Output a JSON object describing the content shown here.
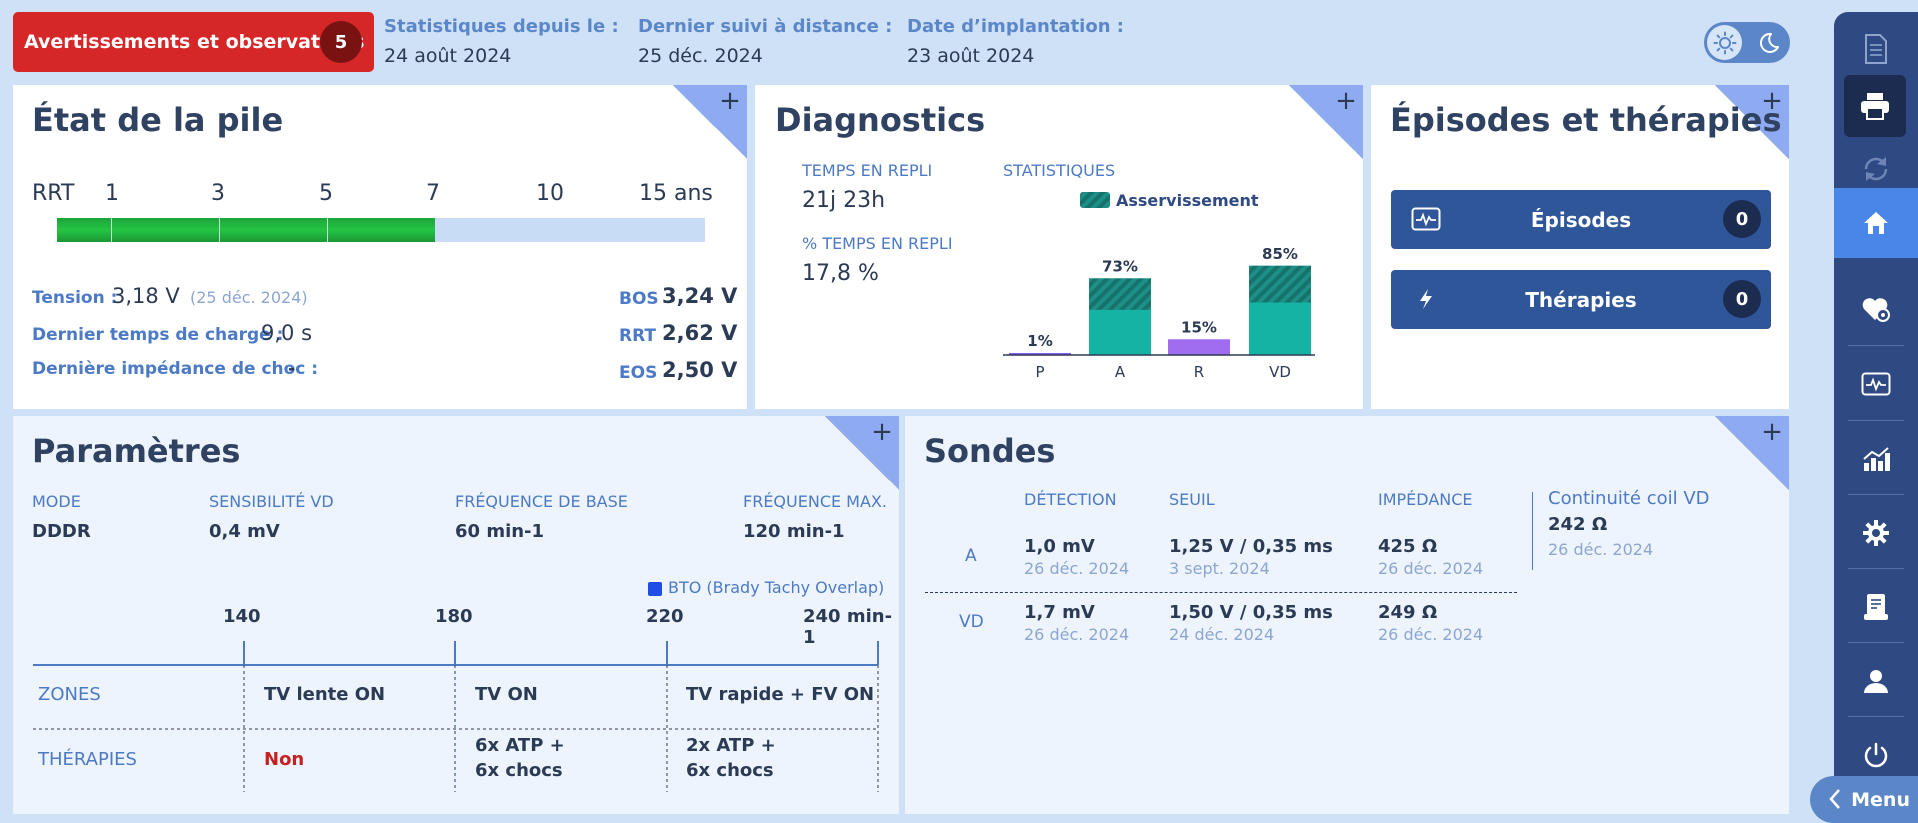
{
  "header": {
    "alert_label": "Avertissements et observations",
    "alert_count": "5",
    "stats_since_label": "Statistiques depuis le :",
    "stats_since_value": "24 août 2024",
    "last_remote_label": "Dernier suivi à distance :",
    "last_remote_value": "25 déc. 2024",
    "implant_label": "Date d’implantation :",
    "implant_value": "23 août 2024"
  },
  "battery": {
    "title": "État de la pile",
    "scale_labels": [
      "RRT",
      "1",
      "3",
      "5",
      "7",
      "10",
      "15 ans"
    ],
    "remaining_years": 7,
    "max_years": 15,
    "voltage_label": "Tension :",
    "voltage_value": "3,18 V",
    "voltage_date": "(25 déc. 2024)",
    "charge_label": "Dernier temps de charge :",
    "charge_value": "9,0 s",
    "impedance_label": "Dernière impédance de choc :",
    "impedance_value": "-",
    "bos_label": "BOS",
    "bos_value": "3,24 V",
    "rrt_label": "RRT",
    "rrt_value": "2,62 V",
    "eos_label": "EOS",
    "eos_value": "2,50 V"
  },
  "diagnostics": {
    "title": "Diagnostics",
    "fallback_time_label": "TEMPS EN REPLI",
    "fallback_time_value": "21j 23h",
    "fallback_pct_label": "% TEMPS EN REPLI",
    "fallback_pct_value": "17,8 %",
    "stats_label": "STATISTIQUES",
    "legend_label": "Asservissement"
  },
  "chart_data": {
    "type": "bar",
    "title": "STATISTIQUES",
    "categories": [
      "P",
      "A",
      "R",
      "VD"
    ],
    "values": [
      1,
      73,
      15,
      85
    ],
    "value_labels": [
      "1%",
      "73%",
      "15%",
      "85%"
    ],
    "asservissement": [
      0,
      30,
      0,
      35
    ],
    "legend": [
      "Asservissement"
    ],
    "ylim": [
      0,
      100
    ],
    "colors": {
      "P": "#8b5cf6",
      "A": "#14b3a3",
      "R": "#a06cf0",
      "VD": "#14b3a3"
    }
  },
  "episodes": {
    "title": "Épisodes et thérapies",
    "episodes_label": "Épisodes",
    "episodes_count": "0",
    "therapies_label": "Thérapies",
    "therapies_count": "0"
  },
  "params": {
    "title": "Paramètres",
    "mode_label": "MODE",
    "mode_value": "DDDR",
    "sens_label": "SENSIBILITÉ VD",
    "sens_value": "0,4 mV",
    "base_label": "FRÉQUENCE DE BASE",
    "base_value": "60 min-1",
    "max_label": "FRÉQUENCE MAX.",
    "max_value": "120 min-1",
    "bto_label": "BTO (Brady Tachy Overlap)",
    "rates": [
      "140",
      "180",
      "220",
      "240 min-1"
    ],
    "zones_label": "ZONES",
    "zones": [
      "TV lente ON",
      "TV ON",
      "TV rapide + FV ON"
    ],
    "therapies_label": "THÉRAPIES",
    "therapies_none": "Non",
    "therapy2_l1": "6x ATP  +",
    "therapy2_l2": "6x chocs",
    "therapy3_l1": "2x ATP  +",
    "therapy3_l2": "6x chocs"
  },
  "leads": {
    "title": "Sondes",
    "col_detection": "DÉTECTION",
    "col_threshold": "SEUIL",
    "col_impedance": "IMPÉDANCE",
    "rows": [
      {
        "chamber": "A",
        "detection": "1,0 mV",
        "detection_date": "26 déc. 2024",
        "threshold": "1,25 V / 0,35 ms",
        "threshold_date": "3 sept. 2024",
        "impedance": "425 Ω",
        "impedance_date": "26 déc. 2024"
      },
      {
        "chamber": "VD",
        "detection": "1,7 mV",
        "detection_date": "26 déc. 2024",
        "threshold": "1,50 V / 0,35 ms",
        "threshold_date": "24 déc. 2024",
        "impedance": "249 Ω",
        "impedance_date": "26 déc. 2024"
      }
    ],
    "coil_label": "Continuité coil VD",
    "coil_value": "242 Ω",
    "coil_date": "26 déc. 2024"
  },
  "sidebar": {
    "menu_label": "Menu",
    "items": [
      "document-icon",
      "print-icon",
      "sync-icon",
      "home-icon",
      "heart-settings-icon",
      "ecg-icon",
      "chart-icon",
      "settings-icon",
      "report-icon",
      "user-icon",
      "power-icon"
    ]
  }
}
